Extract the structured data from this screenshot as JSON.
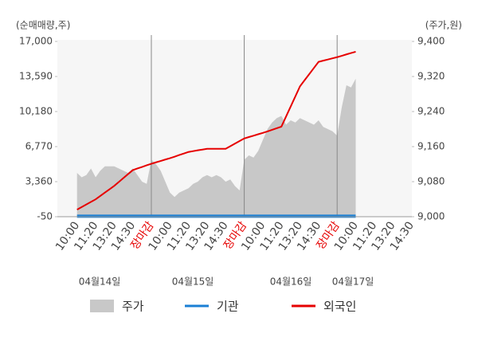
{
  "chart_data": {
    "type": "line",
    "y_axis_title": "(순매매량,주)",
    "y2_axis_title": "(주가,원)",
    "categories": [
      "10:00",
      null,
      null,
      null,
      "11:20",
      null,
      null,
      null,
      "13:20",
      null,
      null,
      null,
      "14:30",
      null,
      null,
      null,
      "장마감",
      null,
      null,
      null,
      "10:00",
      null,
      null,
      null,
      "11:20",
      null,
      null,
      null,
      "13:20",
      null,
      null,
      null,
      "14:30",
      null,
      null,
      null,
      "장마감",
      null,
      null,
      null,
      "10:00",
      null,
      null,
      null,
      "11:20",
      null,
      null,
      null,
      "13:20",
      null,
      null,
      null,
      "14:30",
      null,
      null,
      null,
      "장마감",
      null,
      null,
      null,
      "10:00",
      null,
      null,
      null,
      "11:20",
      null,
      null,
      null,
      "13:20",
      null,
      null,
      null,
      "14:30"
    ],
    "highlight_categories": [
      16,
      36,
      56
    ],
    "highlight_color": "#e60000",
    "day_dividers": [
      16,
      36,
      56
    ],
    "date_labels": [
      "04월14일",
      "04월15일",
      "04월16일",
      "04월17일"
    ],
    "series": [
      {
        "name": "주가",
        "color": "#c8c8c8",
        "kind": "area",
        "axis": "y2",
        "values": [
          9100,
          9090,
          9095,
          9110,
          9090,
          9105,
          9115,
          9115,
          9115,
          9110,
          9105,
          9100,
          9110,
          9095,
          9080,
          9075,
          9130,
          9120,
          9105,
          9080,
          9055,
          9045,
          9055,
          9060,
          9065,
          9075,
          9080,
          9090,
          9095,
          9090,
          9095,
          9090,
          9080,
          9085,
          9070,
          9060,
          9130,
          9140,
          9135,
          9150,
          9175,
          9200,
          9215,
          9225,
          9230,
          9210,
          9220,
          9215,
          9225,
          9220,
          9215,
          9210,
          9220,
          9205,
          9200,
          9195,
          9185,
          9250,
          9300,
          9295,
          9315,
          null,
          null,
          null,
          null,
          null,
          null,
          null,
          null,
          null,
          null,
          null,
          null
        ]
      },
      {
        "name": "기관",
        "color": "#1a7fd4",
        "kind": "line",
        "values": [
          0,
          0,
          0,
          0,
          0,
          0,
          0,
          0,
          0,
          0,
          0,
          0,
          0,
          0,
          0,
          0,
          0,
          0,
          0,
          0,
          0,
          0,
          0,
          0,
          0,
          0,
          0,
          0,
          0,
          0,
          0,
          0,
          0,
          0,
          0,
          0,
          0,
          0,
          0,
          0,
          0,
          0,
          0,
          0,
          0,
          0,
          0,
          0,
          0,
          0,
          0,
          0,
          0,
          0,
          0,
          0,
          0,
          0,
          0,
          0,
          0,
          null,
          null,
          null,
          null,
          null,
          null,
          null,
          null,
          null,
          null,
          null,
          null
        ]
      },
      {
        "name": "외국인",
        "color": "#e60000",
        "kind": "line",
        "values": [
          640,
          890,
          1140,
          1390,
          1640,
          1970,
          2300,
          2620,
          2950,
          3330,
          3720,
          4100,
          4480,
          4640,
          4790,
          4950,
          5100,
          5240,
          5370,
          5510,
          5640,
          5790,
          5950,
          6100,
          6250,
          6330,
          6410,
          6480,
          6560,
          6560,
          6560,
          6560,
          6560,
          6810,
          7060,
          7310,
          7560,
          7700,
          7830,
          7970,
          8100,
          8250,
          8400,
          8560,
          8710,
          9690,
          10670,
          11650,
          12630,
          13230,
          13820,
          14420,
          15010,
          15130,
          15240,
          15360,
          15470,
          15600,
          15740,
          15870,
          16000,
          null,
          null,
          null,
          null,
          null,
          null,
          null,
          null,
          null,
          null,
          null,
          null
        ]
      }
    ],
    "ylim": [
      -50,
      17000
    ],
    "yticks": [
      -50,
      {
        "value": 3360,
        "label": "3,360"
      },
      {
        "value": 6770,
        "label": "6,770"
      },
      {
        "value": 10180,
        "label": "10,180"
      },
      {
        "value": 13590,
        "label": "13,590"
      },
      {
        "value": 17000,
        "label": "17,000"
      }
    ],
    "y2lim": [
      9000,
      9400
    ],
    "y2ticks": [
      {
        "value": 9000,
        "label": "9,000"
      },
      {
        "value": 9080,
        "label": "9,080"
      },
      {
        "value": 9160,
        "label": "9,160"
      },
      {
        "value": 9240,
        "label": "9,240"
      },
      {
        "value": 9320,
        "label": "9,320"
      },
      {
        "value": 9400,
        "label": "9,400"
      }
    ]
  }
}
